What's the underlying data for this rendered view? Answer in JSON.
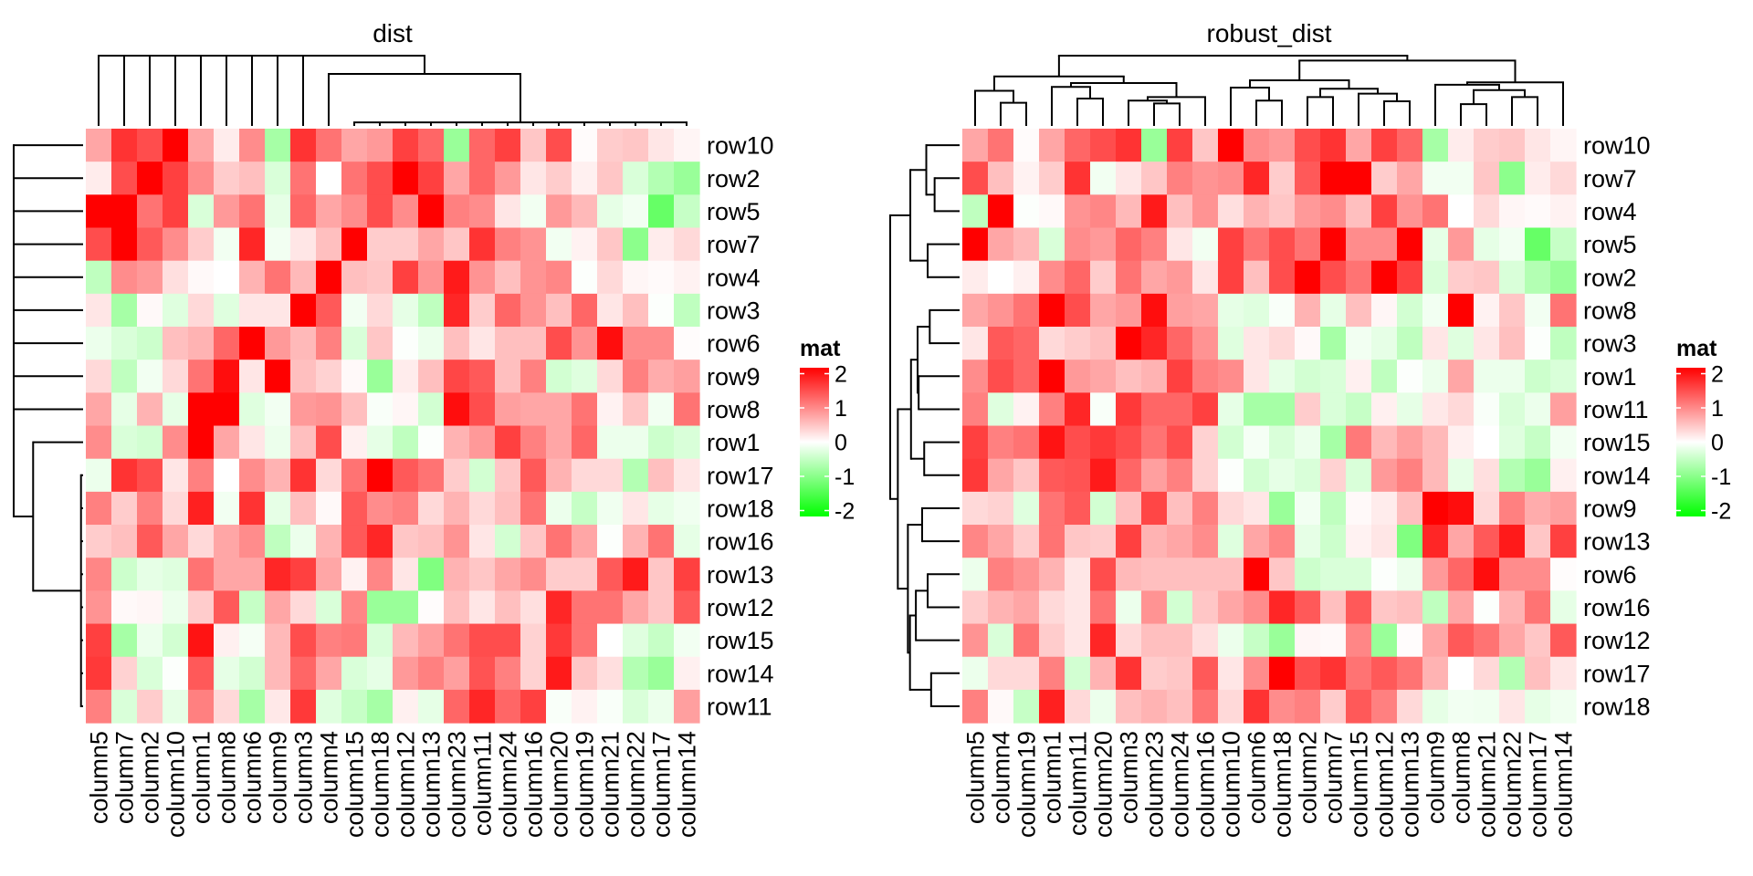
{
  "chart_data": {
    "type": "heatmap",
    "rows": [
      "row10",
      "row2",
      "row5",
      "row7",
      "row4",
      "row3",
      "row6",
      "row9",
      "row8",
      "row1",
      "row17",
      "row18",
      "row16",
      "row13",
      "row12",
      "row15",
      "row14",
      "row11"
    ],
    "columns": [
      "column5",
      "column7",
      "column2",
      "column10",
      "column1",
      "column8",
      "column6",
      "column9",
      "column3",
      "column4",
      "column15",
      "column18",
      "column12",
      "column13",
      "column23",
      "column11",
      "column24",
      "column16",
      "column20",
      "column19",
      "column21",
      "column22",
      "column17",
      "column14"
    ],
    "values": [
      [
        0.7,
        1.6,
        1.4,
        2.0,
        0.7,
        0.15,
        0.9,
        -0.7,
        1.6,
        1.1,
        0.7,
        0.8,
        1.5,
        1.2,
        -0.8,
        1.2,
        1.5,
        0.45,
        1.4,
        0.03,
        0.4,
        0.45,
        0.2,
        0.08
      ],
      [
        0.15,
        1.4,
        2.0,
        1.5,
        0.9,
        0.4,
        0.5,
        -0.3,
        1.1,
        0.0,
        1.1,
        1.4,
        2.0,
        1.5,
        0.7,
        1.2,
        0.8,
        0.2,
        0.4,
        0.12,
        0.45,
        -0.3,
        -0.6,
        -0.8
      ],
      [
        2.0,
        2.0,
        1.1,
        1.5,
        -0.3,
        0.8,
        1.1,
        -0.2,
        1.2,
        0.7,
        0.9,
        1.4,
        0.9,
        2.0,
        1.0,
        0.9,
        0.2,
        -0.1,
        0.8,
        0.55,
        -0.2,
        -0.1,
        -1.2,
        -0.45
      ],
      [
        1.4,
        2.0,
        1.3,
        0.9,
        0.4,
        -0.1,
        1.7,
        -0.1,
        0.2,
        0.5,
        2.0,
        0.4,
        0.4,
        0.7,
        0.45,
        1.6,
        1.0,
        0.85,
        -0.1,
        0.1,
        0.45,
        -0.9,
        0.15,
        0.3
      ],
      [
        -0.5,
        0.9,
        0.8,
        0.25,
        0.05,
        0.0,
        0.6,
        1.1,
        0.55,
        2.0,
        0.5,
        0.45,
        1.5,
        0.85,
        1.8,
        0.85,
        0.5,
        0.85,
        0.95,
        -0.02,
        0.3,
        0.07,
        0.04,
        0.1
      ],
      [
        0.2,
        -0.7,
        0.05,
        -0.25,
        0.3,
        -0.25,
        0.2,
        0.2,
        2.0,
        1.3,
        -0.1,
        0.3,
        -0.2,
        -0.5,
        1.7,
        0.4,
        1.2,
        0.85,
        0.5,
        1.2,
        0.2,
        0.5,
        -0.02,
        -0.5
      ],
      [
        -0.15,
        -0.3,
        -0.4,
        0.5,
        0.6,
        1.2,
        2.0,
        0.8,
        0.55,
        1.0,
        -0.3,
        0.45,
        -0.02,
        -0.15,
        0.5,
        0.2,
        0.5,
        0.5,
        1.4,
        0.85,
        1.9,
        0.9,
        0.9,
        0.02
      ],
      [
        0.3,
        -0.5,
        -0.1,
        0.3,
        1.1,
        1.9,
        0.2,
        2.0,
        0.5,
        0.35,
        0.05,
        -0.8,
        0.15,
        0.5,
        1.45,
        1.3,
        0.5,
        1.0,
        -0.35,
        -0.25,
        0.3,
        1.0,
        0.65,
        0.75
      ],
      [
        0.7,
        -0.2,
        0.6,
        -0.2,
        2.0,
        2.0,
        -0.25,
        -0.1,
        0.8,
        0.85,
        0.5,
        -0.05,
        0.07,
        -0.35,
        1.9,
        1.4,
        0.75,
        0.7,
        0.7,
        1.1,
        0.1,
        0.45,
        -0.1,
        1.1
      ],
      [
        0.9,
        -0.3,
        -0.35,
        0.9,
        2.0,
        0.7,
        0.2,
        -0.15,
        0.5,
        1.4,
        0.12,
        -0.2,
        -0.5,
        -0.02,
        0.6,
        0.8,
        1.5,
        1.0,
        0.7,
        1.2,
        -0.15,
        -0.15,
        -0.4,
        -0.3
      ],
      [
        -0.15,
        1.6,
        1.4,
        0.2,
        1.0,
        0.0,
        0.9,
        0.6,
        1.6,
        0.3,
        1.1,
        2.0,
        1.3,
        1.1,
        0.4,
        -0.35,
        0.45,
        1.3,
        0.6,
        0.3,
        0.3,
        -0.6,
        0.5,
        0.2
      ],
      [
        1.0,
        0.4,
        1.0,
        0.3,
        1.75,
        -0.1,
        1.6,
        -0.2,
        0.5,
        0.05,
        1.3,
        0.9,
        1.0,
        0.3,
        0.6,
        0.3,
        0.5,
        1.1,
        -0.15,
        -0.45,
        -0.12,
        0.2,
        -0.2,
        -0.12
      ],
      [
        0.4,
        0.5,
        1.3,
        0.7,
        0.3,
        0.7,
        0.9,
        -0.5,
        -0.15,
        0.6,
        1.3,
        1.7,
        0.45,
        0.5,
        0.85,
        0.2,
        -0.35,
        0.45,
        1.1,
        0.7,
        -0.02,
        0.6,
        1.1,
        -0.2
      ],
      [
        0.95,
        -0.4,
        -0.2,
        -0.25,
        1.1,
        0.7,
        0.7,
        1.7,
        1.5,
        0.7,
        0.1,
        0.95,
        0.2,
        -1.0,
        0.6,
        0.45,
        0.7,
        0.9,
        0.4,
        0.4,
        1.3,
        1.8,
        0.45,
        1.5
      ],
      [
        0.85,
        0.05,
        0.07,
        -0.15,
        0.4,
        1.3,
        -0.45,
        0.7,
        0.3,
        -0.3,
        0.95,
        -0.8,
        -0.8,
        0.02,
        0.5,
        0.2,
        0.5,
        0.25,
        1.7,
        1.1,
        1.1,
        0.7,
        0.45,
        1.3
      ],
      [
        1.5,
        -0.7,
        -0.15,
        -0.35,
        1.85,
        0.12,
        -0.08,
        0.55,
        1.4,
        1.0,
        1.05,
        -0.3,
        0.55,
        0.75,
        1.1,
        1.4,
        1.4,
        0.35,
        1.55,
        1.1,
        0.0,
        -0.25,
        -0.45,
        -0.1
      ],
      [
        1.55,
        0.35,
        -0.3,
        -0.02,
        1.3,
        -0.2,
        -0.35,
        0.55,
        1.2,
        0.7,
        -0.3,
        -0.2,
        0.8,
        1.0,
        0.75,
        1.35,
        1.0,
        0.35,
        1.8,
        0.45,
        0.25,
        -0.6,
        -0.8,
        0.12
      ],
      [
        1.0,
        -0.3,
        0.4,
        -0.2,
        1.0,
        0.3,
        -0.7,
        0.18,
        1.55,
        -0.25,
        -0.45,
        -0.7,
        0.12,
        -0.2,
        1.2,
        1.7,
        1.2,
        1.5,
        -0.05,
        0.1,
        -0.05,
        -0.3,
        -0.15,
        0.75
      ]
    ],
    "colors": {
      "low": "#00FF00",
      "mid": "#FFFFFF",
      "high": "#FF0000"
    },
    "value_range": [
      -2,
      2
    ],
    "heatmaps": [
      {
        "title": "dist",
        "row_order": [
          "row10",
          "row2",
          "row5",
          "row7",
          "row4",
          "row3",
          "row6",
          "row9",
          "row8",
          "row1",
          "row17",
          "row18",
          "row16",
          "row13",
          "row12",
          "row15",
          "row14",
          "row11"
        ],
        "column_order": [
          "column5",
          "column7",
          "column2",
          "column10",
          "column1",
          "column8",
          "column6",
          "column9",
          "column3",
          "column4",
          "column15",
          "column18",
          "column12",
          "column13",
          "column23",
          "column11",
          "column24",
          "column16",
          "column20",
          "column19",
          "column21",
          "column22",
          "column17",
          "column14"
        ],
        "row_dendrogram": {
          "h": 1,
          "c": [
            "row10",
            "row2",
            "row5",
            "row7",
            "row4",
            "row3",
            "row6",
            "row9",
            "row8",
            {
              "h": 0.72,
              "c": [
                "row1",
                {
                  "h": 0.03,
                  "c": [
                    "row17",
                    "row18",
                    "row16",
                    "row13",
                    "row12",
                    "row15",
                    "row14",
                    "row11"
                  ]
                }
              ]
            }
          ]
        },
        "column_dendrogram": {
          "h": 1,
          "c": [
            "column5",
            "column7",
            "column2",
            "column10",
            "column1",
            "column8",
            "column6",
            "column9",
            "column3",
            {
              "h": 0.74,
              "c": [
                "column4",
                {
                  "h": 0.05,
                  "c": [
                    "column15",
                    "column18",
                    "column12",
                    "column13",
                    "column23",
                    "column11",
                    "column24",
                    "column16",
                    "column20",
                    "column19",
                    "column21",
                    "column22",
                    "column17",
                    "column14"
                  ]
                }
              ]
            }
          ]
        },
        "legend": {
          "title": "mat",
          "ticks": [
            "2",
            "1",
            "0",
            "-1",
            "-2"
          ]
        }
      },
      {
        "title": "robust_dist",
        "row_order": [
          "row10",
          "row7",
          "row4",
          "row5",
          "row2",
          "row8",
          "row3",
          "row1",
          "row11",
          "row15",
          "row14",
          "row9",
          "row13",
          "row6",
          "row16",
          "row12",
          "row17",
          "row18"
        ],
        "column_order": [
          "column5",
          "column4",
          "column19",
          "column1",
          "column11",
          "column20",
          "column3",
          "column23",
          "column24",
          "column16",
          "column10",
          "column6",
          "column18",
          "column2",
          "column7",
          "column15",
          "column12",
          "column13",
          "column9",
          "column8",
          "column21",
          "column22",
          "column17",
          "column14"
        ],
        "row_dendrogram": {
          "h": 1,
          "c": [
            {
              "h": 0.71,
              "c": [
                {
                  "h": 0.48,
                  "c": [
                    "row10",
                    {
                      "h": 0.36,
                      "c": [
                        "row7",
                        "row4"
                      ]
                    }
                  ]
                },
                {
                  "h": 0.46,
                  "c": [
                    "row5",
                    "row2"
                  ]
                }
              ]
            },
            {
              "h": 0.89,
              "c": [
                {
                  "h": 0.7,
                  "c": [
                    {
                      "h": 0.605,
                      "c": [
                        {
                          "h": 0.43,
                          "c": [
                            "row8",
                            "row3"
                          ]
                        },
                        {
                          "h": 0.59,
                          "c": [
                            "row1",
                            "row11"
                          ]
                        }
                      ]
                    },
                    {
                      "h": 0.51,
                      "c": [
                        "row15",
                        "row14"
                      ]
                    }
                  ]
                },
                {
                  "h": 0.745,
                  "c": [
                    {
                      "h": 0.54,
                      "c": [
                        "row9",
                        "row13"
                      ]
                    },
                    {
                      "h": 0.715,
                      "c": [
                        {
                          "h": 0.63,
                          "c": [
                            {
                              "h": 0.46,
                              "c": [
                                "row6",
                                "row16"
                              ]
                            },
                            "row12"
                          ]
                        },
                        {
                          "h": 0.41,
                          "c": [
                            "row17",
                            "row18"
                          ]
                        }
                      ]
                    }
                  ]
                }
              ]
            }
          ]
        },
        "column_dendrogram": {
          "h": 1,
          "c": [
            {
              "h": 0.705,
              "c": [
                {
                  "h": 0.5,
                  "c": [
                    "column5",
                    {
                      "h": 0.33,
                      "c": [
                        "column4",
                        "column19"
                      ]
                    }
                  ]
                },
                {
                  "h": 0.61,
                  "c": [
                    {
                      "h": 0.555,
                      "c": [
                        "column1",
                        {
                          "h": 0.39,
                          "c": [
                            "column11",
                            "column20"
                          ]
                        }
                      ]
                    },
                    {
                      "h": 0.41,
                      "c": [
                        {
                          "h": 0.36,
                          "c": [
                            "column3",
                            {
                              "h": 0.32,
                              "c": [
                                "column23",
                                "column24"
                              ]
                            }
                          ]
                        },
                        "column16"
                      ]
                    }
                  ]
                }
              ]
            },
            {
              "h": 0.93,
              "c": [
                {
                  "h": 0.65,
                  "c": [
                    {
                      "h": 0.546,
                      "c": [
                        "column10",
                        {
                          "h": 0.36,
                          "c": [
                            "column6",
                            "column18"
                          ]
                        }
                      ]
                    },
                    {
                      "h": 0.53,
                      "c": [
                        {
                          "h": 0.41,
                          "c": [
                            "column2",
                            "column7"
                          ]
                        },
                        {
                          "h": 0.46,
                          "c": [
                            "column15",
                            {
                              "h": 0.35,
                              "c": [
                                "column12",
                                "column13"
                              ]
                            }
                          ]
                        }
                      ]
                    }
                  ]
                },
                {
                  "h": 0.62,
                  "c": [
                    {
                      "h": 0.586,
                      "c": [
                        "column9",
                        {
                          "h": 0.51,
                          "c": [
                            {
                              "h": 0.31,
                              "c": [
                                "column8",
                                "column21"
                              ]
                            },
                            {
                              "h": 0.41,
                              "c": [
                                "column22",
                                "column17"
                              ]
                            }
                          ]
                        }
                      ]
                    },
                    "column14"
                  ]
                }
              ]
            }
          ]
        },
        "legend": {
          "title": "mat",
          "ticks": [
            "2",
            "1",
            "0",
            "-1",
            "-2"
          ]
        }
      }
    ]
  }
}
